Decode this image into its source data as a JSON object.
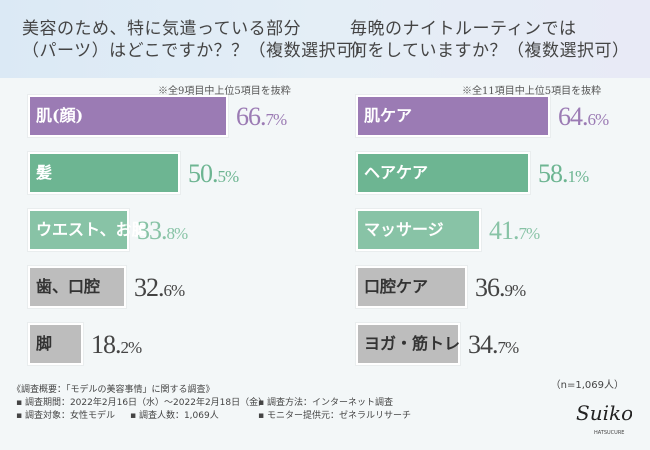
{
  "left": {
    "title": "美容のため、特に気遣っている部分\n（パーツ）はどこですか？？（複数選択可）",
    "note": "※全9項目中上位5項目を抜粋",
    "chart_data": {
      "type": "bar",
      "orientation": "horizontal",
      "categories": [
        "肌(顔)",
        "髪",
        "ウエスト、お腹",
        "歯、口腔",
        "脚"
      ],
      "values": [
        66.7,
        50.5,
        33.8,
        32.6,
        18.2
      ],
      "unit": "%",
      "xlim": [
        0,
        100
      ]
    },
    "colors": [
      "#9b7bb4",
      "#6db592",
      "#88c3a6",
      "#bdbdbd",
      "#bdbdbd"
    ]
  },
  "right": {
    "title": "毎晩のナイトルーティンでは\n何をしていますか？（複数選択可）",
    "note": "※全11項目中上位5項目を抜粋",
    "chart_data": {
      "type": "bar",
      "orientation": "horizontal",
      "categories": [
        "肌ケア",
        "ヘアケア",
        "マッサージ",
        "口腔ケア",
        "ヨガ・筋トレ"
      ],
      "values": [
        64.6,
        58.1,
        41.7,
        36.9,
        34.7
      ],
      "unit": "%",
      "xlim": [
        0,
        100
      ]
    },
    "colors": [
      "#9b7bb4",
      "#6db592",
      "#88c3a6",
      "#bdbdbd",
      "#bdbdbd"
    ]
  },
  "survey": {
    "heading": "《調査概要：「モデルの美容事情」に関する調査》",
    "period": "▪ 調査期間：2022年2月16日（水）〜2022年2月18日（金）",
    "method": "▪ 調査方法：インターネット調査",
    "target": "▪ 調査対象：女性モデル",
    "count": "▪ 調査人数：1,069人",
    "provider": "▪ モニター提供元：ゼネラルリサーチ"
  },
  "n_label": "（n=1,069人）",
  "logo": {
    "name": "Suiko",
    "sub": "HATSUCURE"
  }
}
